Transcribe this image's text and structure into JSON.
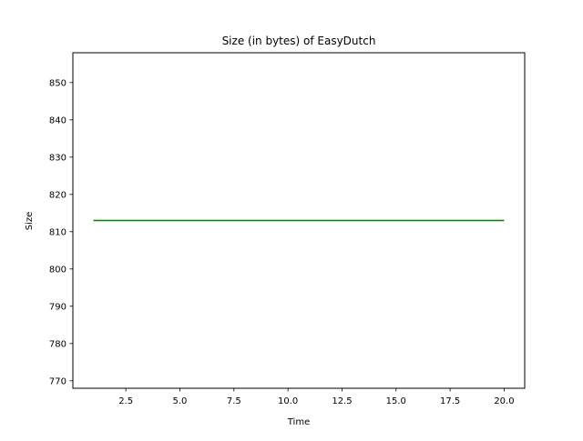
{
  "chart_data": {
    "type": "line",
    "title": "Size (in bytes) of EasyDutch",
    "xlabel": "Time",
    "ylabel": "Size",
    "xlim": [
      0.05,
      20.95
    ],
    "ylim": [
      768,
      858
    ],
    "xticks": [
      2.5,
      5.0,
      7.5,
      10.0,
      12.5,
      15.0,
      17.5,
      20.0
    ],
    "xtick_labels": [
      "2.5",
      "5.0",
      "7.5",
      "10.0",
      "12.5",
      "15.0",
      "17.5",
      "20.0"
    ],
    "yticks": [
      770,
      780,
      790,
      800,
      810,
      820,
      830,
      840,
      850
    ],
    "ytick_labels": [
      "770",
      "780",
      "790",
      "800",
      "810",
      "820",
      "830",
      "840",
      "850"
    ],
    "grid": false,
    "series": [
      {
        "color": "#008000",
        "x": [
          1,
          2,
          3,
          4,
          5,
          6,
          7,
          8,
          9,
          10,
          11,
          12,
          13,
          14,
          15,
          16,
          17,
          18,
          19,
          20
        ],
        "y": [
          813,
          813,
          813,
          813,
          813,
          813,
          813,
          813,
          813,
          813,
          813,
          813,
          813,
          813,
          813,
          813,
          813,
          813,
          813,
          813
        ]
      }
    ]
  }
}
